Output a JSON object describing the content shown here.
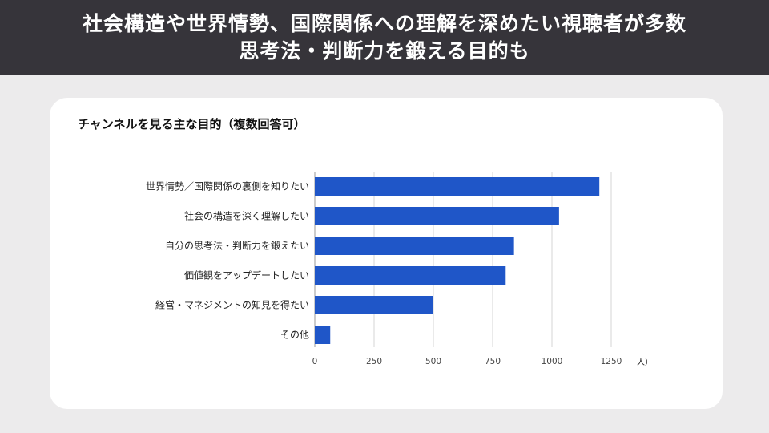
{
  "header": {
    "line1": "社会構造や世界情勢、国際関係への理解を深めたい視聴者が多数",
    "line2": "思考法・判断力を鍛える目的も"
  },
  "chart_data": {
    "type": "bar",
    "orientation": "horizontal",
    "title": "チャンネルを見る主な目的（複数回答可）",
    "categories": [
      "世界情勢／国際関係の裏側を知りたい",
      "社会の構造を深く理解したい",
      "自分の思考法・判断力を鍛えたい",
      "価値観をアップデートしたい",
      "経営・マネジメントの知見を得たい",
      "その他"
    ],
    "values": [
      1200,
      1030,
      840,
      805,
      500,
      65
    ],
    "xlim": [
      0,
      1250
    ],
    "xticks": [
      "0",
      "250",
      "500",
      "750",
      "1000",
      "1250"
    ],
    "unit": "人）",
    "grid": true,
    "bar_color": "#1f56c8"
  }
}
